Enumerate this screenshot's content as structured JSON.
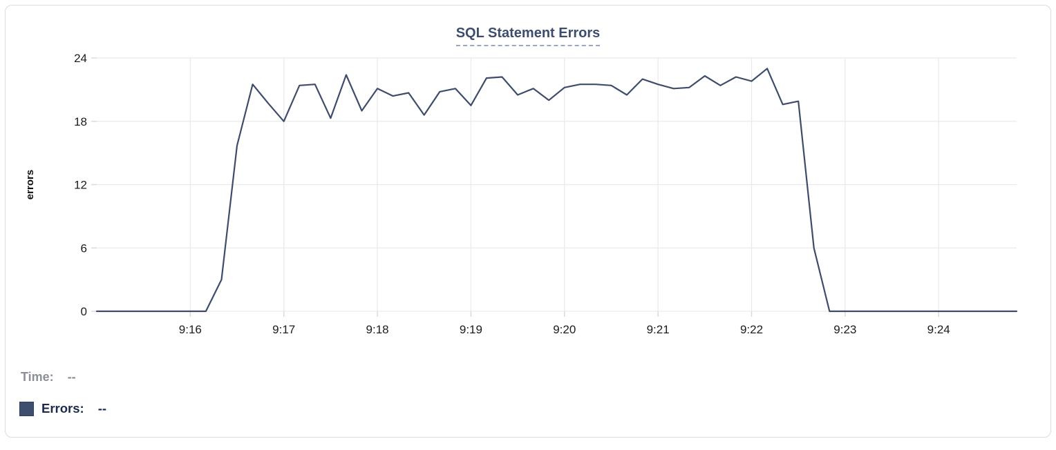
{
  "card": {
    "name": "SQL Statement Errors chart card"
  },
  "chart_data": {
    "type": "line",
    "title": "SQL Statement Errors",
    "xlabel": "",
    "ylabel": "errors",
    "ylim": [
      0,
      24
    ],
    "y_ticks": [
      0,
      6,
      12,
      18,
      24
    ],
    "x_tick_labels": [
      "9:16",
      "9:17",
      "9:18",
      "9:19",
      "9:20",
      "9:21",
      "9:22",
      "9:23",
      "9:24"
    ],
    "x_domain": [
      "9:15:00",
      "9:24:50"
    ],
    "grid": true,
    "legend_position": "bottom-left",
    "series": [
      {
        "name": "Errors",
        "color": "#3d4c6a",
        "x": [
          "9:15:00",
          "9:15:10",
          "9:15:20",
          "9:15:30",
          "9:15:40",
          "9:15:50",
          "9:16:00",
          "9:16:10",
          "9:16:20",
          "9:16:30",
          "9:16:40",
          "9:16:50",
          "9:17:00",
          "9:17:10",
          "9:17:20",
          "9:17:30",
          "9:17:40",
          "9:17:50",
          "9:18:00",
          "9:18:10",
          "9:18:20",
          "9:18:30",
          "9:18:40",
          "9:18:50",
          "9:19:00",
          "9:19:10",
          "9:19:20",
          "9:19:30",
          "9:19:40",
          "9:19:50",
          "9:20:00",
          "9:20:10",
          "9:20:20",
          "9:20:30",
          "9:20:40",
          "9:20:50",
          "9:21:00",
          "9:21:10",
          "9:21:20",
          "9:21:30",
          "9:21:40",
          "9:21:50",
          "9:22:00",
          "9:22:10",
          "9:22:20",
          "9:22:30",
          "9:22:40",
          "9:22:50",
          "9:23:00",
          "9:23:10",
          "9:23:20",
          "9:23:30",
          "9:23:40",
          "9:23:50",
          "9:24:00",
          "9:24:10",
          "9:24:20",
          "9:24:30",
          "9:24:40",
          "9:24:50"
        ],
        "values": [
          0,
          0,
          0,
          0,
          0,
          0,
          0,
          0,
          3,
          15.7,
          21.5,
          19.7,
          18,
          21.4,
          21.5,
          18.3,
          22.4,
          19,
          21.1,
          20.4,
          20.7,
          18.6,
          20.8,
          21.1,
          19.5,
          22.1,
          22.2,
          20.5,
          21.1,
          20,
          21.2,
          21.5,
          21.5,
          21.4,
          20.5,
          22,
          21.5,
          21.1,
          21.2,
          22.3,
          21.4,
          22.2,
          21.8,
          23,
          19.6,
          19.9,
          6,
          0,
          0,
          0,
          0,
          0,
          0,
          0,
          0,
          0,
          0,
          0,
          0,
          0
        ]
      }
    ]
  },
  "tooltip": {
    "time_label": "Time:",
    "time_value": "--",
    "errors_label": "Errors:",
    "errors_value": "--"
  },
  "colors": {
    "line": "#3d4c6a",
    "title": "#3d4d6e",
    "title_underline": "#9aa6c0",
    "grid": "#e8eaec",
    "tick": "#d8dadd",
    "axis_text": "#1c1c1e",
    "time_label": "#8b8f98",
    "errors_label": "#1b2a4c",
    "swatch_fill": "#3e4e6c",
    "card_border": "#d9dce1"
  }
}
